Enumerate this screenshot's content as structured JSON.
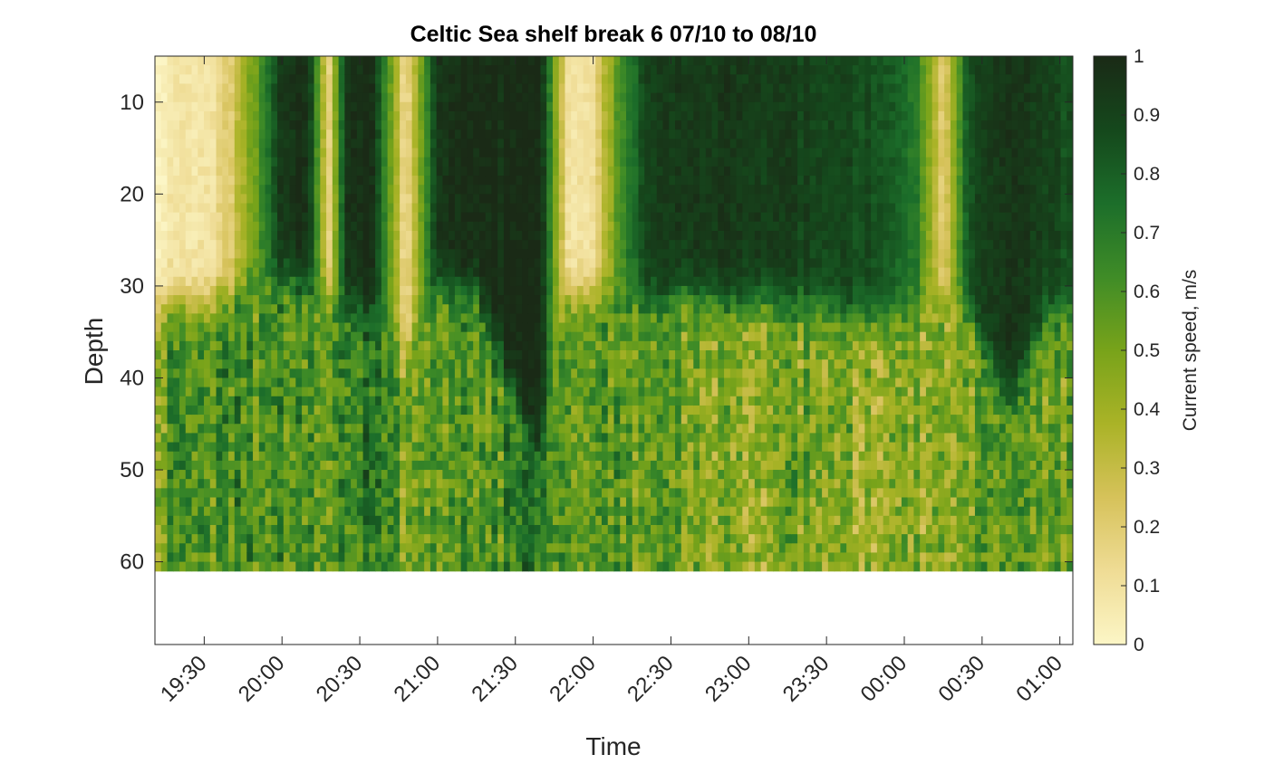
{
  "chart_data": {
    "type": "heatmap",
    "title": "Celtic Sea shelf break 6 07/10 to 08/10",
    "xlabel": "Time",
    "ylabel": "Depth",
    "x_range": [
      "19:11",
      "01:05"
    ],
    "x_ticks": [
      "19:30",
      "20:00",
      "20:30",
      "21:00",
      "21:30",
      "22:00",
      "22:30",
      "23:00",
      "23:30",
      "00:00",
      "00:30",
      "01:00"
    ],
    "y_range": [
      5,
      69
    ],
    "y_reversed": true,
    "y_ticks": [
      10,
      20,
      30,
      40,
      50,
      60
    ],
    "data_bottom_depth": 61,
    "colorbar": {
      "label": "Current speed, m/s",
      "range": [
        0,
        1
      ],
      "ticks": [
        "0",
        "0.1",
        "0.2",
        "0.3",
        "0.4",
        "0.5",
        "0.6",
        "0.7",
        "0.8",
        "0.9",
        "1"
      ],
      "colormap": [
        "#fcf6c6",
        "#efdc95",
        "#d6c25a",
        "#aab327",
        "#78a31a",
        "#3f8c27",
        "#1c6e2a",
        "#15481c",
        "#1a2a16"
      ]
    },
    "columns": [
      {
        "time": "19:11",
        "surface": 0.05,
        "interface_depth": 32,
        "deep": 0.55
      },
      {
        "time": "19:20",
        "surface": 0.06,
        "interface_depth": 32,
        "deep": 0.55
      },
      {
        "time": "19:30",
        "surface": 0.08,
        "interface_depth": 32,
        "deep": 0.6
      },
      {
        "time": "19:40",
        "surface": 0.2,
        "interface_depth": 31,
        "deep": 0.62
      },
      {
        "time": "19:50",
        "surface": 0.55,
        "interface_depth": 29,
        "deep": 0.6
      },
      {
        "time": "20:00",
        "surface": 0.95,
        "interface_depth": 29,
        "deep": 0.62
      },
      {
        "time": "20:10",
        "surface": 0.98,
        "interface_depth": 30,
        "deep": 0.6
      },
      {
        "time": "20:18",
        "surface": 0.15,
        "interface_depth": 30,
        "deep": 0.55
      },
      {
        "time": "20:25",
        "surface": 0.97,
        "interface_depth": 32,
        "deep": 0.65
      },
      {
        "time": "20:35",
        "surface": 0.98,
        "interface_depth": 33,
        "deep": 0.7
      },
      {
        "time": "20:48",
        "surface": 0.1,
        "interface_depth": 37,
        "deep": 0.5
      },
      {
        "time": "21:00",
        "surface": 0.97,
        "interface_depth": 30,
        "deep": 0.6
      },
      {
        "time": "21:15",
        "surface": 0.98,
        "interface_depth": 31,
        "deep": 0.55
      },
      {
        "time": "21:30",
        "surface": 0.99,
        "interface_depth": 42,
        "deep": 0.65
      },
      {
        "time": "21:40",
        "surface": 0.99,
        "interface_depth": 48,
        "deep": 0.7
      },
      {
        "time": "21:50",
        "surface": 0.1,
        "interface_depth": 31,
        "deep": 0.6
      },
      {
        "time": "22:00",
        "surface": 0.12,
        "interface_depth": 31,
        "deep": 0.6
      },
      {
        "time": "22:10",
        "surface": 0.6,
        "interface_depth": 31,
        "deep": 0.6
      },
      {
        "time": "22:20",
        "surface": 0.9,
        "interface_depth": 32,
        "deep": 0.55
      },
      {
        "time": "22:35",
        "surface": 0.92,
        "interface_depth": 31,
        "deep": 0.45
      },
      {
        "time": "22:50",
        "surface": 0.95,
        "interface_depth": 32,
        "deep": 0.5
      },
      {
        "time": "23:05",
        "surface": 0.93,
        "interface_depth": 32,
        "deep": 0.45
      },
      {
        "time": "23:20",
        "surface": 0.9,
        "interface_depth": 32,
        "deep": 0.5
      },
      {
        "time": "23:35",
        "surface": 0.88,
        "interface_depth": 33,
        "deep": 0.45
      },
      {
        "time": "23:50",
        "surface": 0.85,
        "interface_depth": 34,
        "deep": 0.4
      },
      {
        "time": "00:05",
        "surface": 0.7,
        "interface_depth": 32,
        "deep": 0.45
      },
      {
        "time": "00:15",
        "surface": 0.15,
        "interface_depth": 31,
        "deep": 0.4
      },
      {
        "time": "00:25",
        "surface": 0.85,
        "interface_depth": 33,
        "deep": 0.45
      },
      {
        "time": "00:40",
        "surface": 0.95,
        "interface_depth": 43,
        "deep": 0.55
      },
      {
        "time": "00:55",
        "surface": 0.9,
        "interface_depth": 33,
        "deep": 0.5
      },
      {
        "time": "01:05",
        "surface": 0.85,
        "interface_depth": 32,
        "deep": 0.55
      }
    ]
  }
}
